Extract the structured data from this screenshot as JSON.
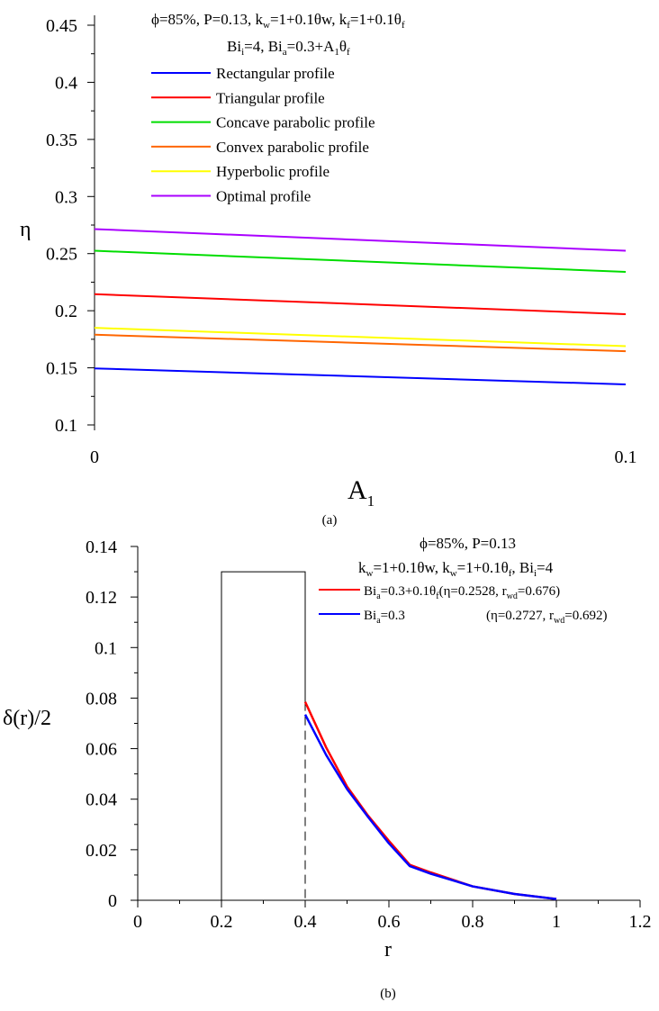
{
  "chart_data": [
    {
      "type": "line",
      "panel_label": "(a)",
      "xlabel": "A",
      "xlabel_sub": "1",
      "ylabel": "η",
      "xlim": [
        0,
        0.1
      ],
      "ylim": [
        0.1,
        0.45
      ],
      "xticks": [
        "0",
        "0.1"
      ],
      "yticks": [
        "0.1",
        "0.15",
        "0.2",
        "0.25",
        "0.3",
        "0.35",
        "0.4",
        "0.45"
      ],
      "x": [
        0,
        0.1
      ],
      "annotation": {
        "line1": "ϕ=85%, P=0.13, k",
        "line1_kw_sub": "w",
        "line1_mid": "=1+0.1θw, k",
        "line1_kf_sub": "f",
        "line1_end": "=1+0.1θ",
        "line1_end_sub": "f",
        "line2_a": "Bi",
        "line2_a_sub": "i",
        "line2_b": "=4, Bi",
        "line2_b_sub": "a",
        "line2_c": "=0.3+A",
        "line2_c_sub": "1",
        "line2_d": "θ",
        "line2_d_sub": "f"
      },
      "series": [
        {
          "name": "Rectangular profile",
          "color": "#0000ff",
          "values": [
            0.1495,
            0.1355
          ]
        },
        {
          "name": "Triangular profile",
          "color": "#ff0000",
          "values": [
            0.2145,
            0.197
          ]
        },
        {
          "name": "Concave parabolic profile",
          "color": "#00dd00",
          "values": [
            0.2525,
            0.234
          ]
        },
        {
          "name": "Convex parabolic profile",
          "color": "#ff6600",
          "values": [
            0.179,
            0.1645
          ]
        },
        {
          "name": "Hyperbolic profile",
          "color": "#ffff00",
          "values": [
            0.185,
            0.169
          ]
        },
        {
          "name": "Optimal profile",
          "color": "#aa00ff",
          "values": [
            0.2715,
            0.2525
          ]
        }
      ]
    },
    {
      "type": "line",
      "panel_label": "(b)",
      "xlabel": "r",
      "ylabel": "δ(r)/2",
      "xlim": [
        0,
        1.2
      ],
      "ylim": [
        0,
        0.14
      ],
      "xticks": [
        "0",
        "0.2",
        "0.4",
        "0.6",
        "0.8",
        "1",
        "1.2"
      ],
      "yticks": [
        "0",
        "0.02",
        "0.04",
        "0.06",
        "0.08",
        "0.1",
        "0.12",
        "0.14"
      ],
      "rectangle": {
        "x0": 0.2,
        "x1": 0.4,
        "height": 0.13
      },
      "dashed_x": 0.4,
      "annotation": {
        "line1": "ϕ=85%, P=0.13",
        "line2_a": "k",
        "line2_a_sub": "w",
        "line2_b": "=1+0.1θw, k",
        "line2_b_sub": "w",
        "line2_c": "=1+0.1θ",
        "line2_c_sub": "f",
        "line2_d": ", Bi",
        "line2_d_sub": "i",
        "line2_e": "=4"
      },
      "series": [
        {
          "name_a": "Bi",
          "name_sub": "a",
          "name_b": "=0.3+0.1θ",
          "name_sub2": "f",
          "stats_a": "(η=0.2528, r",
          "stats_sub": "wd",
          "stats_b": "=0.676)",
          "color": "#ff0000",
          "x": [
            0.4,
            0.45,
            0.5,
            0.55,
            0.6,
            0.65,
            0.7,
            0.8,
            0.9,
            1.0
          ],
          "values": [
            0.0785,
            0.0605,
            0.045,
            0.0335,
            0.0235,
            0.014,
            0.011,
            0.0055,
            0.0025,
            0.0005
          ]
        },
        {
          "name_a": "Bi",
          "name_sub": "a",
          "name_b": "=0.3",
          "name_sub2": "",
          "stats_a": "(η=0.2727, r",
          "stats_sub": "wd",
          "stats_b": "=0.692)",
          "color": "#0000ff",
          "x": [
            0.4,
            0.45,
            0.5,
            0.55,
            0.6,
            0.65,
            0.7,
            0.8,
            0.9,
            1.0
          ],
          "values": [
            0.0735,
            0.0575,
            0.044,
            0.033,
            0.0225,
            0.0135,
            0.0105,
            0.0055,
            0.0025,
            0.0005
          ]
        }
      ]
    }
  ]
}
